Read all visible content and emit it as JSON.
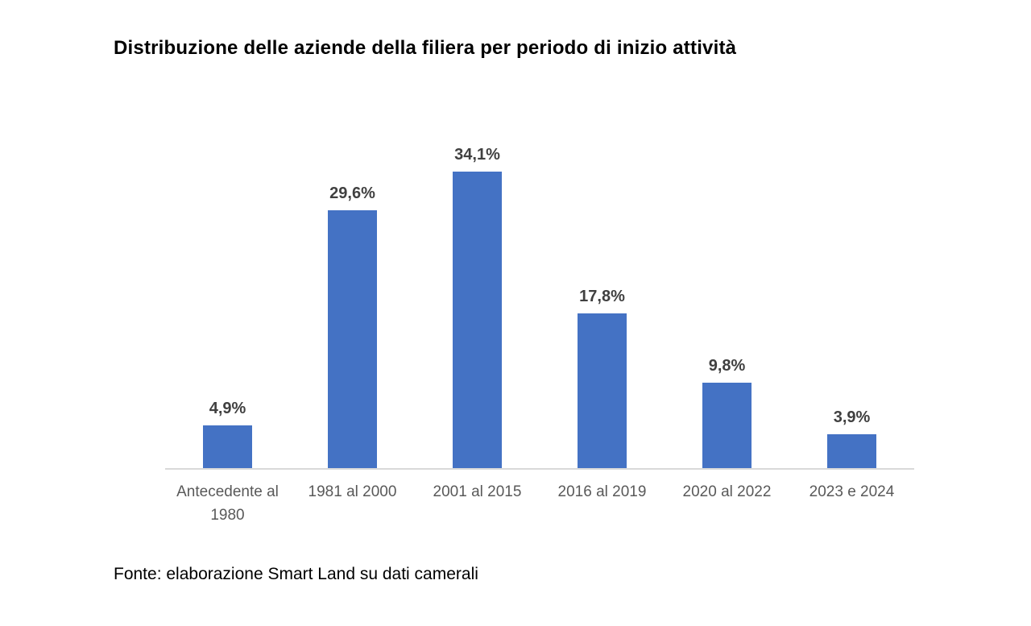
{
  "chart": {
    "title": "Distribuzione delle aziende della filiera per periodo di inizio attività",
    "source_note": "Fonte: elaborazione Smart Land su dati camerali"
  },
  "chart_data": {
    "type": "bar",
    "title": "Distribuzione delle aziende della filiera per periodo di inizio attività",
    "categories": [
      "Antecedente al 1980",
      "1981 al 2000",
      "2001 al 2015",
      "2016 al 2019",
      "2020 al 2022",
      "2023 e 2024"
    ],
    "values": [
      4.9,
      29.6,
      34.1,
      17.8,
      9.8,
      3.9
    ],
    "value_labels": [
      "4,9%",
      "29,6%",
      "34,1%",
      "17,8%",
      "9,8%",
      "3,9%"
    ],
    "xlabel": "",
    "ylabel": "",
    "ylim": [
      0,
      38
    ],
    "grid": false,
    "legend": null,
    "bar_color": "#4472C4",
    "value_label_color": "#404040",
    "axis_label_color": "#595959",
    "axis_line_color": "#D9D9D9",
    "source": "Fonte: elaborazione Smart Land su dati camerali"
  }
}
